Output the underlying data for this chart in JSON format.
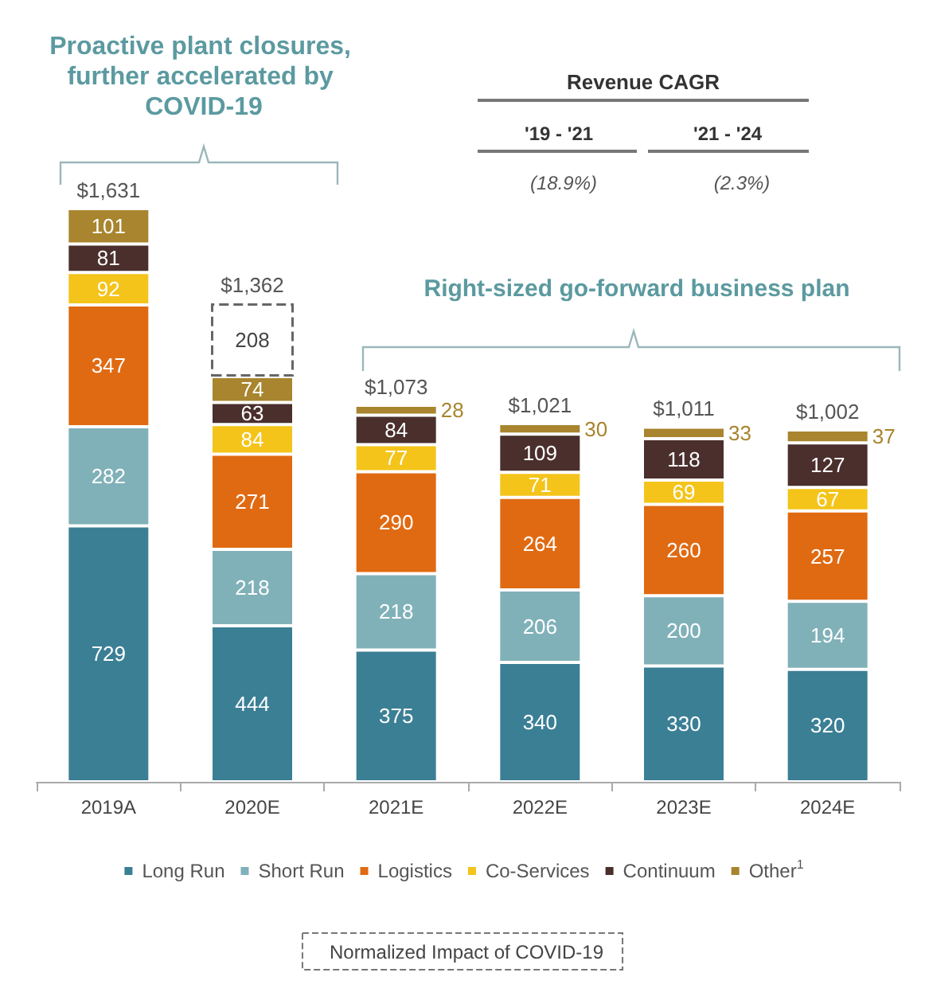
{
  "chart_data": {
    "type": "bar",
    "stacked": true,
    "data_labels": true,
    "legend": "bottom",
    "categories": [
      "2019A",
      "2020E",
      "2021E",
      "2022E",
      "2023E",
      "2024E"
    ],
    "series": [
      {
        "name": "Long Run",
        "color": "#3b7f95",
        "values": [
          729,
          444,
          375,
          340,
          330,
          320
        ]
      },
      {
        "name": "Short Run",
        "color": "#80b1b9",
        "values": [
          282,
          218,
          218,
          206,
          200,
          194
        ]
      },
      {
        "name": "Logistics",
        "color": "#e06a12",
        "values": [
          347,
          271,
          290,
          264,
          260,
          257
        ]
      },
      {
        "name": "Co-Services",
        "color": "#f4c41a",
        "values": [
          92,
          84,
          77,
          71,
          69,
          67
        ]
      },
      {
        "name": "Continuum",
        "color": "#4a2f2c",
        "values": [
          81,
          63,
          84,
          109,
          118,
          127
        ]
      },
      {
        "name": "Other$^{1}$",
        "color": "#a8852e",
        "values": [
          101,
          74,
          28,
          30,
          33,
          37
        ]
      },
      {
        "name": "Normalized Impact of COVID-19",
        "color": "#ffffff",
        "line_style": "dashed",
        "values": [
          null,
          208,
          null,
          null,
          null,
          null
        ]
      }
    ],
    "totals": [
      "$1,631",
      "$1,362",
      "$1,073",
      "$1,021",
      "$1,011",
      "$1,002"
    ],
    "annotations": [
      "Proactive plant closures, further accelerated by COVID-19",
      "Right-sized go-forward business plan",
      "Revenue CAGR",
      "'19 - '21",
      "'21 - '24",
      "(18.9%)",
      "(2.3%)"
    ]
  }
}
